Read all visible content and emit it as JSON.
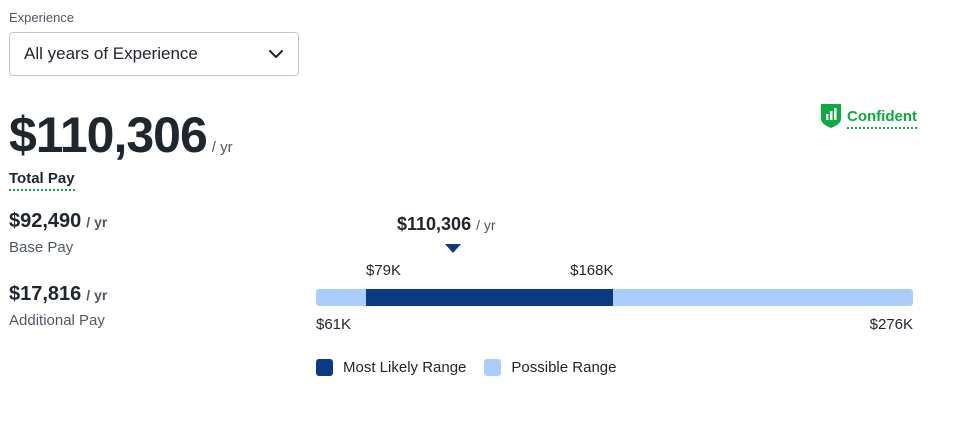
{
  "experience": {
    "label": "Experience",
    "selected": "All years of Experience"
  },
  "total_pay": {
    "amount": "$110,306",
    "unit": "/ yr",
    "label": "Total Pay"
  },
  "confidence": {
    "label": "Confident",
    "color": "#0caa41",
    "icon": "bar-chart-shield-icon"
  },
  "base_pay": {
    "amount": "$92,490",
    "unit": "/ yr",
    "label": "Base Pay"
  },
  "additional_pay": {
    "amount": "$17,816",
    "unit": "/ yr",
    "label": "Additional Pay"
  },
  "range_chart": {
    "marker_amount": "$110,306",
    "marker_unit": "/ yr",
    "likely_low_label": "$79K",
    "likely_high_label": "$168K",
    "possible_low_label": "$61K",
    "possible_high_label": "$276K",
    "legend_likely": "Most Likely Range",
    "legend_possible": "Possible Range",
    "likely_color": "#0c3a82",
    "possible_color": "#abcdfb"
  },
  "chart_data": {
    "type": "bar",
    "orientation": "horizontal-range",
    "possible_range": [
      61000,
      276000
    ],
    "most_likely_range": [
      79000,
      168000
    ],
    "marker_value": 110306,
    "categories": [
      "Most Likely Range",
      "Possible Range"
    ]
  }
}
